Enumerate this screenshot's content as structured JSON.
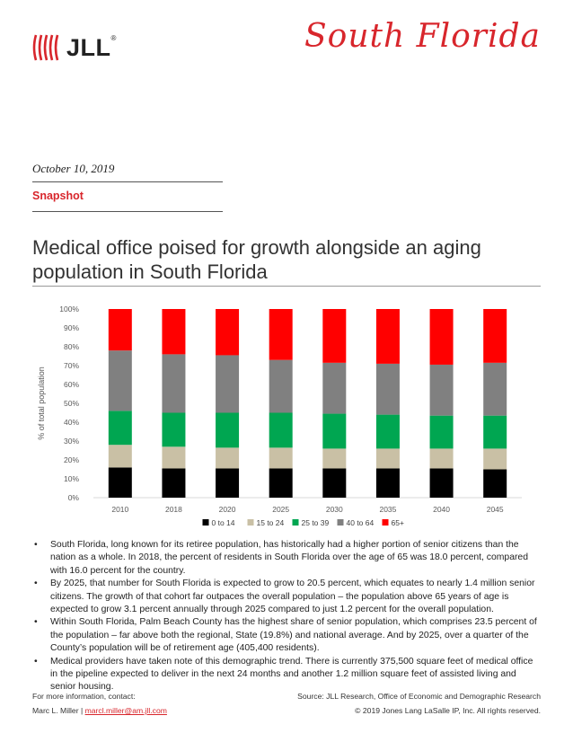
{
  "header": {
    "brand": "JLL",
    "brand_mark": "®",
    "region": "South Florida",
    "brand_color": "#d8262c"
  },
  "meta": {
    "date": "October 10, 2019",
    "section": "Snapshot"
  },
  "headline": "Medical office poised for growth alongside an aging population in South Florida",
  "chart_data": {
    "type": "bar",
    "stacked": true,
    "categories": [
      "2010",
      "2018",
      "2020",
      "2025",
      "2030",
      "2035",
      "2040",
      "2045"
    ],
    "ylabel": "% of total population",
    "ylim": [
      0,
      100
    ],
    "yticks": [
      "0%",
      "10%",
      "20%",
      "30%",
      "40%",
      "50%",
      "60%",
      "70%",
      "80%",
      "90%",
      "100%"
    ],
    "legend_position": "bottom",
    "series": [
      {
        "name": "0 to 14",
        "color": "#000000",
        "values": [
          16,
          15.5,
          15.5,
          15.5,
          15.5,
          15.5,
          15.5,
          15
        ]
      },
      {
        "name": "15 to 24",
        "color": "#c9c0a5",
        "values": [
          12,
          11.5,
          11,
          11,
          10.5,
          10.5,
          10.5,
          11
        ]
      },
      {
        "name": "25 to 39",
        "color": "#00a651",
        "values": [
          18,
          18,
          18.5,
          18.5,
          18.5,
          18,
          17.5,
          17.5
        ]
      },
      {
        "name": "40 to 64",
        "color": "#808080",
        "values": [
          32,
          31,
          30.5,
          28,
          27,
          27,
          27,
          28
        ]
      },
      {
        "name": "65+",
        "color": "#ff0000",
        "values": [
          22,
          24,
          24.5,
          27,
          28.5,
          29,
          29.5,
          28.5
        ]
      }
    ]
  },
  "bullets": [
    "South Florida, long known for its retiree population, has historically had a higher portion of senior citizens than the nation as a whole. In 2018, the percent of residents in South Florida over the age of 65 was 18.0 percent, compared with 16.0 percent for the country.",
    "By 2025, that number for South Florida is expected to grow to 20.5 percent, which equates to nearly 1.4 million senior citizens. The growth of that cohort far outpaces the overall population – the population above 65 years of age is expected to grow 3.1 percent annually through 2025 compared to just 1.2 percent for the overall population.",
    "Within South Florida, Palm Beach County has the highest share of senior population, which comprises 23.5 percent of the population – far above both the regional, State (19.8%) and national average. And by 2025, over a quarter of the County’s population will be of retirement age (405,400 residents).",
    "Medical providers have taken note of this demographic trend. There is currently 375,500 square feet of medical office in the pipeline expected to deliver in the next 24 months and another 1.2 million square feet of assisted living and senior housing."
  ],
  "footer": {
    "contact_label": "For more information, contact:",
    "contact_name": "Marc L. Miller",
    "contact_sep": " | ",
    "contact_email": "marcl.miller@am.jll.com",
    "source": "Source: JLL Research, Office of Economic and Demographic Research",
    "copyright": "© 2019 Jones Lang LaSalle IP, Inc. All rights reserved."
  }
}
